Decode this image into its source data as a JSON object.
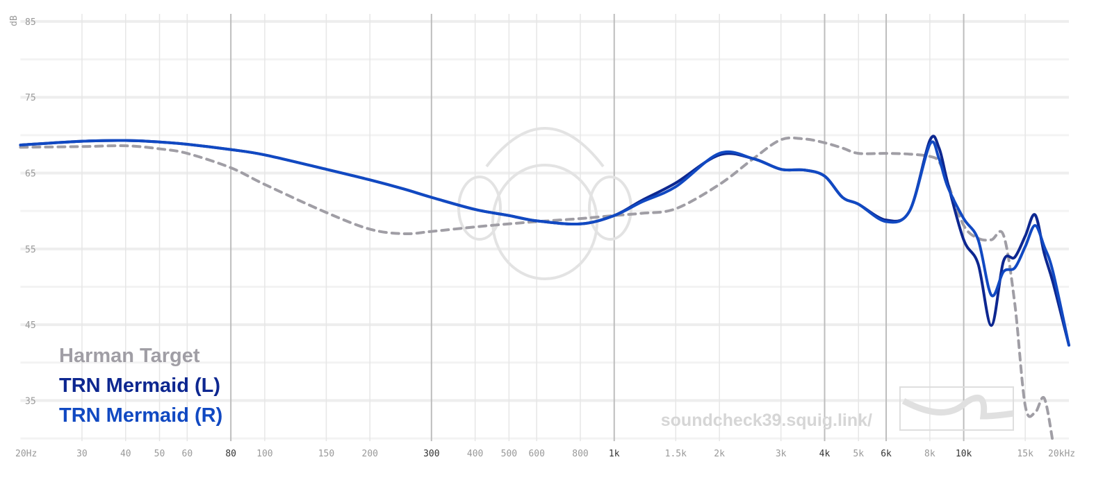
{
  "chart_data": {
    "type": "line",
    "y_label": "dB",
    "watermark": "soundcheck39.squig.link/",
    "log_x": true,
    "grid": true,
    "xlim": [
      20,
      20000
    ],
    "ylim": [
      29,
      86
    ],
    "yticks": [
      35,
      45,
      55,
      65,
      75,
      85
    ],
    "yminorticks": [
      30,
      40,
      50,
      60,
      70,
      80
    ],
    "xticks": [
      {
        "value": 20,
        "label": "20Hz"
      },
      30,
      40,
      50,
      60,
      80,
      100,
      150,
      200,
      300,
      400,
      500,
      600,
      800,
      {
        "value": 1000,
        "label": "1k"
      },
      {
        "value": 1500,
        "label": "1.5k"
      },
      {
        "value": 2000,
        "label": "2k"
      },
      {
        "value": 3000,
        "label": "3k"
      },
      {
        "value": 4000,
        "label": "4k"
      },
      {
        "value": 5000,
        "label": "5k"
      },
      {
        "value": 6000,
        "label": "6k"
      },
      {
        "value": 8000,
        "label": "8k"
      },
      {
        "value": 10000,
        "label": "10k"
      },
      {
        "value": 15000,
        "label": "15k"
      },
      {
        "value": 20000,
        "label": "20kHz"
      }
    ],
    "xmajor": [
      80,
      300,
      1000,
      4000,
      6000,
      10000
    ],
    "x": [
      20,
      30,
      40,
      50,
      60,
      80,
      100,
      150,
      200,
      250,
      300,
      400,
      500,
      600,
      800,
      1000,
      1200,
      1500,
      2000,
      2500,
      3000,
      3500,
      4000,
      4500,
      5000,
      6000,
      7000,
      8000,
      8500,
      9000,
      10000,
      11000,
      12000,
      13000,
      14000,
      15000,
      16000,
      17000,
      18000,
      20000
    ],
    "series": [
      {
        "name": "Harman Target",
        "color": "#a09ea5",
        "dashed": true,
        "values": [
          68.4,
          68.5,
          68.6,
          68.2,
          67.6,
          65.7,
          63.5,
          59.8,
          57.6,
          57.0,
          57.3,
          57.9,
          58.3,
          58.6,
          59.0,
          59.4,
          59.7,
          60.3,
          63.5,
          66.9,
          69.4,
          69.5,
          69.0,
          68.3,
          67.6,
          67.6,
          67.5,
          67.2,
          66.5,
          63.7,
          58.1,
          56.4,
          56.2,
          56.8,
          47.8,
          34.3,
          33.4,
          35.3,
          29.5,
          null
        ]
      },
      {
        "name": "TRN Mermaid (L)",
        "color": "#0d2790",
        "dashed": false,
        "values": [
          68.7,
          69.2,
          69.3,
          69.1,
          68.8,
          68.1,
          67.4,
          65.5,
          64.1,
          62.9,
          61.8,
          60.2,
          59.4,
          58.7,
          58.3,
          59.4,
          61.4,
          63.7,
          67.4,
          66.9,
          65.5,
          65.4,
          64.6,
          61.8,
          60.9,
          58.8,
          60.0,
          69.3,
          68.3,
          63.7,
          56.2,
          53.0,
          44.9,
          53.4,
          53.9,
          56.7,
          59.5,
          54.4,
          50.6,
          42.3
        ]
      },
      {
        "name": "TRN Mermaid (R)",
        "color": "#1149c2",
        "dashed": false,
        "values": [
          68.7,
          69.2,
          69.3,
          69.1,
          68.8,
          68.1,
          67.4,
          65.5,
          64.1,
          62.9,
          61.8,
          60.2,
          59.4,
          58.7,
          58.3,
          59.4,
          61.2,
          63.2,
          67.6,
          66.9,
          65.5,
          65.4,
          64.6,
          61.8,
          60.9,
          58.6,
          60.0,
          68.8,
          66.9,
          63.2,
          59.0,
          56.2,
          48.9,
          52.0,
          52.5,
          55.3,
          58.1,
          55.3,
          52.0,
          42.3
        ]
      }
    ]
  }
}
